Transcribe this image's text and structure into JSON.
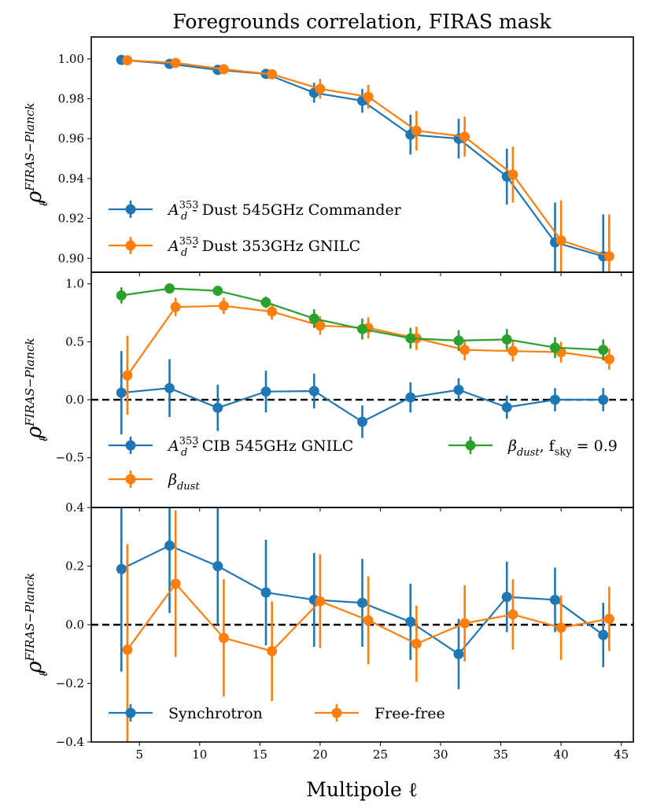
{
  "chart_data": [
    {
      "type": "line",
      "title": "Foregrounds correlation, FIRAS mask",
      "ylabel": "ρ_ℓ^{FIRAS−Planck}",
      "xlim": [
        1,
        46
      ],
      "ylim": [
        0.893,
        1.011
      ],
      "yticks": [
        0.9,
        0.92,
        0.94,
        0.96,
        0.98,
        1.0
      ],
      "ytick_labels": [
        "0.90",
        "0.92",
        "0.94",
        "0.96",
        "0.98",
        "1.00"
      ],
      "grid": false,
      "legend": "lower-left",
      "legend_columns": 1,
      "series": [
        {
          "name_main": "A",
          "name_sub": "d",
          "name_sup": "353",
          "name_rest": " - Dust 545GHz Commander",
          "color": "#1f77b4",
          "x": [
            3.5,
            7.5,
            11.5,
            15.5,
            19.5,
            23.5,
            27.5,
            31.5,
            35.5,
            39.5,
            43.5
          ],
          "y": [
            0.9995,
            0.9975,
            0.9945,
            0.9925,
            0.983,
            0.979,
            0.962,
            0.96,
            0.941,
            0.908,
            0.901
          ],
          "yerr": [
            0.001,
            0.0015,
            0.002,
            0.002,
            0.005,
            0.006,
            0.01,
            0.01,
            0.014,
            0.02,
            0.021
          ]
        },
        {
          "name_main": "A",
          "name_sub": "d",
          "name_sup": "353",
          "name_rest": " - Dust 353GHz GNILC",
          "color": "#ff7f0e",
          "x": [
            4.0,
            8.0,
            12.0,
            16.0,
            20.0,
            24.0,
            28.0,
            32.0,
            36.0,
            40.0,
            44.0
          ],
          "y": [
            0.9993,
            0.998,
            0.9948,
            0.9923,
            0.985,
            0.981,
            0.964,
            0.961,
            0.942,
            0.909,
            0.901
          ],
          "yerr": [
            0.001,
            0.0015,
            0.002,
            0.002,
            0.005,
            0.006,
            0.01,
            0.01,
            0.014,
            0.02,
            0.021
          ]
        }
      ]
    },
    {
      "type": "line",
      "ylabel": "ρ_ℓ^{FIRAS−Planck}",
      "xlim": [
        1,
        46
      ],
      "ylim": [
        -0.93,
        1.1
      ],
      "yticks": [
        -0.5,
        0.0,
        0.5,
        1.0
      ],
      "ytick_labels": [
        "−0.5",
        "0.0",
        "0.5",
        "1.0"
      ],
      "reference_line_y": 0,
      "grid": false,
      "legend": "lower-left",
      "legend_columns": 2,
      "series": [
        {
          "name_main": "A",
          "name_sub": "d",
          "name_sup": "353",
          "name_rest": " - CIB 545GHz GNILC",
          "color": "#1f77b4",
          "x": [
            3.5,
            7.5,
            11.5,
            15.5,
            19.5,
            23.5,
            27.5,
            31.5,
            35.5,
            39.5,
            43.5
          ],
          "y": [
            0.06,
            0.1,
            -0.07,
            0.07,
            0.075,
            -0.19,
            0.02,
            0.085,
            -0.065,
            0.0,
            0.0
          ],
          "yerr": [
            0.36,
            0.25,
            0.2,
            0.18,
            0.15,
            0.14,
            0.13,
            0.1,
            0.1,
            0.1,
            0.1
          ]
        },
        {
          "name_main": "β",
          "name_sub": "dust",
          "name_sup": "",
          "name_rest": "",
          "color": "#ff7f0e",
          "x": [
            4.0,
            8.0,
            12.0,
            16.0,
            20.0,
            24.0,
            28.0,
            32.0,
            36.0,
            40.0,
            44.0
          ],
          "y": [
            0.21,
            0.8,
            0.81,
            0.76,
            0.64,
            0.62,
            0.53,
            0.43,
            0.42,
            0.41,
            0.35
          ],
          "yerr": [
            0.34,
            0.08,
            0.07,
            0.07,
            0.08,
            0.09,
            0.1,
            0.09,
            0.09,
            0.09,
            0.09
          ]
        },
        {
          "name_main": "β",
          "name_sub": "dust",
          "name_sup": "",
          "name_rest": ", f",
          "name_rest_sub": "sky",
          "name_rest_tail": " = 0.9",
          "color": "#2ca02c",
          "x": [
            3.5,
            7.5,
            11.5,
            15.5,
            19.5,
            23.5,
            27.5,
            31.5,
            35.5,
            39.5,
            43.5
          ],
          "y": [
            0.9,
            0.96,
            0.94,
            0.84,
            0.7,
            0.61,
            0.53,
            0.51,
            0.52,
            0.45,
            0.43
          ],
          "yerr": [
            0.07,
            0.03,
            0.04,
            0.05,
            0.08,
            0.09,
            0.09,
            0.09,
            0.09,
            0.09,
            0.09
          ]
        }
      ]
    },
    {
      "type": "line",
      "xlabel": "Multipole ℓ",
      "ylabel": "ρ_ℓ^{FIRAS−Planck}",
      "xlim": [
        1,
        46
      ],
      "ylim": [
        -0.4,
        0.4
      ],
      "xticks": [
        5,
        10,
        15,
        20,
        25,
        30,
        35,
        40,
        45
      ],
      "xtick_labels": [
        "5",
        "10",
        "15",
        "20",
        "25",
        "30",
        "35",
        "40",
        "45"
      ],
      "yticks": [
        -0.4,
        -0.2,
        0.0,
        0.2,
        0.4
      ],
      "ytick_labels": [
        "−0.4",
        "−0.2",
        "0.0",
        "0.2",
        "0.4"
      ],
      "reference_line_y": 0,
      "grid": false,
      "legend": "lower-left",
      "legend_columns": 2,
      "series": [
        {
          "name_main": "Synchrotron",
          "name_sub": "",
          "name_sup": "",
          "name_rest": "",
          "color": "#1f77b4",
          "x": [
            3.5,
            7.5,
            11.5,
            15.5,
            19.5,
            23.5,
            27.5,
            31.5,
            35.5,
            39.5,
            43.5
          ],
          "y": [
            0.19,
            0.27,
            0.2,
            0.11,
            0.085,
            0.075,
            0.01,
            -0.1,
            0.095,
            0.085,
            -0.035
          ],
          "yerr": [
            0.35,
            0.23,
            0.2,
            0.18,
            0.16,
            0.15,
            0.13,
            0.12,
            0.12,
            0.11,
            0.11
          ]
        },
        {
          "name_main": "Free-free",
          "name_sub": "",
          "name_sup": "",
          "name_rest": "",
          "color": "#ff7f0e",
          "x": [
            4.0,
            8.0,
            12.0,
            16.0,
            20.0,
            24.0,
            28.0,
            32.0,
            36.0,
            40.0,
            44.0
          ],
          "y": [
            -0.085,
            0.14,
            -0.045,
            -0.09,
            0.08,
            0.015,
            -0.065,
            0.005,
            0.035,
            -0.01,
            0.02
          ],
          "yerr": [
            0.36,
            0.25,
            0.2,
            0.17,
            0.16,
            0.15,
            0.13,
            0.13,
            0.12,
            0.11,
            0.11
          ]
        }
      ]
    }
  ]
}
